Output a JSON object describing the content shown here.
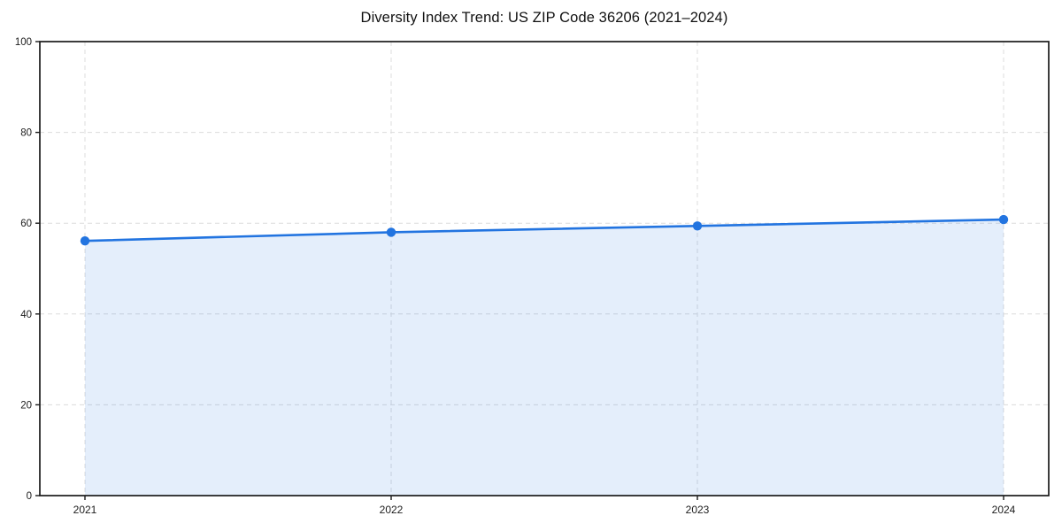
{
  "chart_data": {
    "type": "line",
    "title": "Diversity Index Trend: US ZIP Code 36206 (2021–2024)",
    "xlabel": "",
    "ylabel": "",
    "categories": [
      "2021",
      "2022",
      "2023",
      "2024"
    ],
    "series": [
      {
        "name": "Diversity Index",
        "values": [
          56.1,
          58.0,
          59.4,
          60.8
        ]
      }
    ],
    "ylim": [
      0,
      100
    ],
    "yticks": [
      0,
      20,
      40,
      60,
      80,
      100
    ],
    "grid": "on",
    "grid_style": "dashed",
    "legend_position": "none",
    "marker": "circle",
    "area_fill": true,
    "colors": {
      "line": "#2274e0",
      "marker": "#2274e0",
      "area": "rgba(34,116,224,0.12)",
      "grid": "#dcdcdc",
      "spine": "#1a1a1a",
      "tick_label": "#1c1c1c",
      "background": "#ffffff"
    }
  }
}
